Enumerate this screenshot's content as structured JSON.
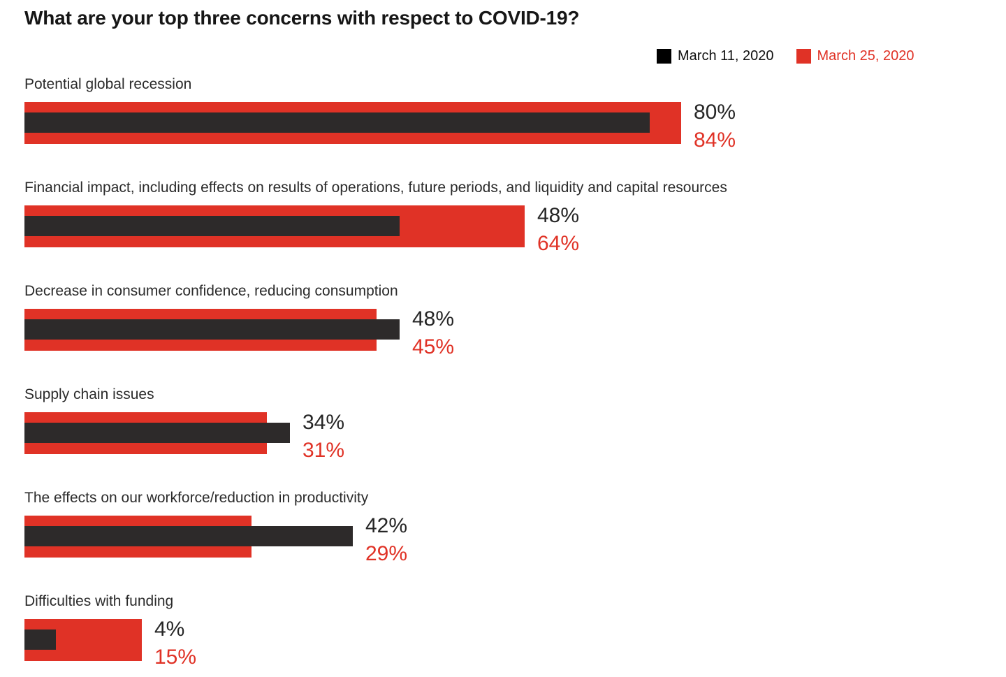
{
  "page": {
    "background": "#ffffff"
  },
  "colors": {
    "series_march_11": "#000000",
    "series_march_11_bar": "#2d2a2a",
    "series_march_25": "#e03226",
    "title_text": "#161616",
    "category_text": "#2b2b2b"
  },
  "chart_data": {
    "type": "bar",
    "orientation": "horizontal",
    "title": "What are your top three concerns with respect to COVID-19?",
    "xlabel": "",
    "ylabel": "",
    "unit": "%",
    "xlim": [
      0,
      100
    ],
    "grid": false,
    "legend": {
      "position": "top-right",
      "entries": [
        {
          "label": "March 11, 2020",
          "color": "#000000"
        },
        {
          "label": "March 25, 2020",
          "color": "#e03226"
        }
      ]
    },
    "categories": [
      "Potential global recession",
      "Financial impact, including effects on results of operations, future periods, and liquidity and capital resources",
      "Decrease in consumer confidence, reducing consumption",
      "Supply chain issues",
      "The effects on our workforce/reduction in productivity",
      "Difficulties with funding"
    ],
    "series": [
      {
        "name": "March 11, 2020",
        "color": "#2d2a2a",
        "values": [
          80,
          48,
          48,
          34,
          42,
          4
        ]
      },
      {
        "name": "March 25, 2020",
        "color": "#e03226",
        "values": [
          84,
          64,
          45,
          31,
          29,
          15
        ]
      }
    ],
    "value_labels": [
      [
        "80%",
        "84%"
      ],
      [
        "48%",
        "64%"
      ],
      [
        "48%",
        "45%"
      ],
      [
        "34%",
        "31%"
      ],
      [
        "42%",
        "29%"
      ],
      [
        "4%",
        "15%"
      ]
    ]
  }
}
